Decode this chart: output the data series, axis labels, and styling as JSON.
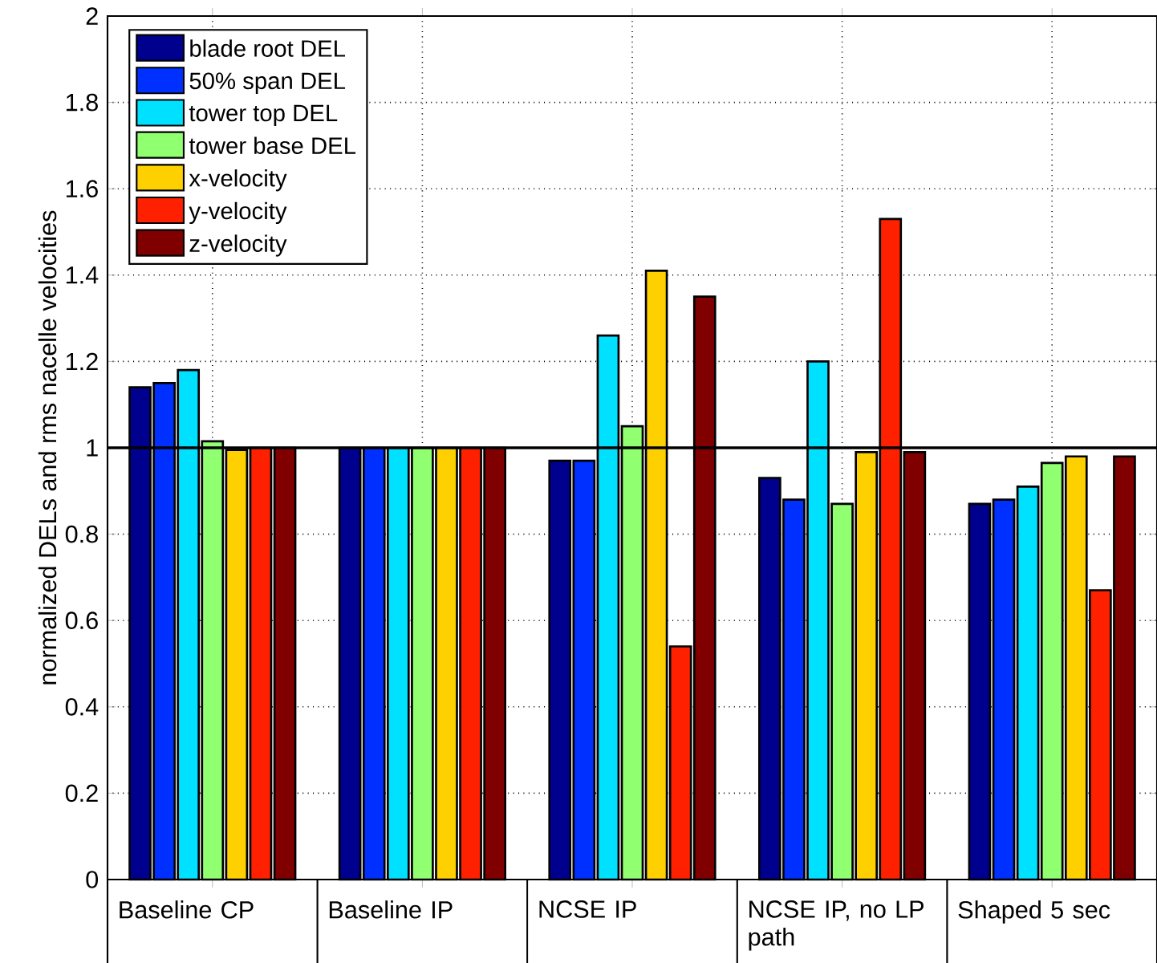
{
  "chart_data": {
    "type": "bar",
    "ylabel": "normalized DELs and rms nacelle velocities",
    "categories": [
      "Baseline CP",
      "Baseline IP",
      "NCSE IP",
      "NCSE IP, no LP path",
      "Shaped 5 sec"
    ],
    "series": [
      {
        "name": "blade root DEL",
        "color": "#00008f",
        "values": [
          1.14,
          1.0,
          0.97,
          0.93,
          0.87
        ]
      },
      {
        "name": "50% span DEL",
        "color": "#0030ff",
        "values": [
          1.15,
          1.0,
          0.97,
          0.88,
          0.88
        ]
      },
      {
        "name": "tower top DEL",
        "color": "#00e0ff",
        "values": [
          1.18,
          1.0,
          1.26,
          1.2,
          0.91
        ]
      },
      {
        "name": "tower base DEL",
        "color": "#90ff70",
        "values": [
          1.015,
          1.0,
          1.05,
          0.87,
          0.965
        ]
      },
      {
        "name": "x-velocity",
        "color": "#ffd000",
        "values": [
          0.995,
          1.0,
          1.41,
          0.99,
          0.98
        ]
      },
      {
        "name": "y-velocity",
        "color": "#ff2000",
        "values": [
          1.0,
          1.0,
          0.54,
          1.53,
          0.67
        ]
      },
      {
        "name": "z-velocity",
        "color": "#800000",
        "values": [
          1.0,
          1.0,
          1.35,
          0.99,
          0.98
        ]
      }
    ],
    "ylim": [
      0,
      2
    ],
    "yticks": [
      0,
      0.2,
      0.4,
      0.6,
      0.8,
      1,
      1.2,
      1.4,
      1.6,
      1.8,
      2
    ],
    "ref_lines": [
      {
        "axis": "y",
        "value": 1,
        "color": "#000000"
      }
    ],
    "grid": true,
    "legend": "top left"
  }
}
